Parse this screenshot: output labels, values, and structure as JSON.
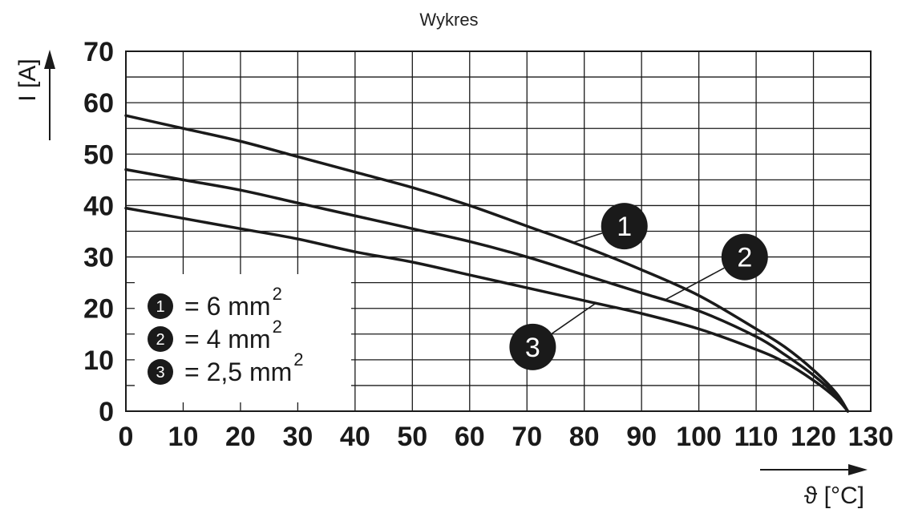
{
  "chart_data": {
    "type": "line",
    "title": "Wykres",
    "xlabel": "ϑ [°C]",
    "ylabel": "I [A]",
    "xlim": [
      0,
      130
    ],
    "ylim": [
      0,
      70
    ],
    "x_ticks": [
      "0",
      "10",
      "20",
      "30",
      "40",
      "50",
      "60",
      "70",
      "80",
      "90",
      "100",
      "110",
      "120",
      "130"
    ],
    "y_ticks": [
      "0",
      "10",
      "20",
      "30",
      "40",
      "50",
      "60",
      "70"
    ],
    "grid": true,
    "series": [
      {
        "marker": "1",
        "x": [
          0,
          10,
          20,
          30,
          40,
          50,
          60,
          70,
          80,
          90,
          100,
          110,
          115,
          120,
          124,
          126
        ],
        "y": [
          57.5,
          55,
          52.5,
          49.5,
          46.5,
          43.5,
          40,
          36,
          32,
          27.5,
          22.5,
          16,
          12.5,
          8,
          3.5,
          0
        ]
      },
      {
        "marker": "2",
        "x": [
          0,
          10,
          20,
          30,
          40,
          50,
          60,
          70,
          80,
          90,
          100,
          110,
          115,
          120,
          124,
          126
        ],
        "y": [
          47,
          45,
          43,
          40.5,
          38,
          35.5,
          33,
          30,
          26.5,
          23,
          19.5,
          14.5,
          11,
          7,
          3,
          0
        ]
      },
      {
        "marker": "3",
        "x": [
          0,
          10,
          20,
          30,
          40,
          50,
          60,
          70,
          80,
          90,
          100,
          110,
          115,
          120,
          124,
          126
        ],
        "y": [
          39.5,
          37.5,
          35.5,
          33.5,
          31,
          29,
          26.5,
          24,
          21.5,
          19,
          16,
          12,
          9.5,
          6,
          2.5,
          0
        ]
      }
    ],
    "legend": {
      "placement": "bottom-left",
      "items": [
        {
          "marker": "1",
          "text": "= 6 mm",
          "sup": "2"
        },
        {
          "marker": "2",
          "text": "= 4 mm",
          "sup": "2"
        },
        {
          "marker": "3",
          "text": "= 2,5 mm",
          "sup": "2"
        }
      ]
    },
    "callouts": [
      {
        "marker": "1",
        "x": 87,
        "y": 36,
        "curve_x": 78
      },
      {
        "marker": "2",
        "x": 108,
        "y": 30,
        "curve_x": 94
      },
      {
        "marker": "3",
        "x": 71,
        "y": 12.5,
        "curve_x": 82
      }
    ],
    "colors": {
      "line": "#1a1a1a",
      "grid": "#1a1a1a",
      "marker_fill": "#1a1a1a"
    }
  }
}
